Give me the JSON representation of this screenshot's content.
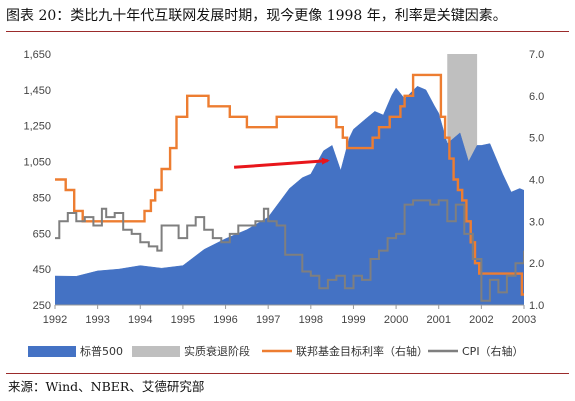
{
  "header": {
    "title": "图表 20：类比九十年代互联网发展时期，现今更像 1998 年，利率是关键因素。"
  },
  "footer": {
    "source": "来源：Wind、NBER、艾德研究部"
  },
  "colors": {
    "spx": "#4472c4",
    "recession": "#bfbfbf",
    "fed": "#ed7d31",
    "cpi": "#7f7f7f",
    "arrow": "#e8161b",
    "frame": "#9b2b2b"
  },
  "chart_data": {
    "type": "area",
    "xlim": [
      1992,
      2003
    ],
    "x_ticks": [
      "1992",
      "1993",
      "1994",
      "1995",
      "1996",
      "1997",
      "1998",
      "1999",
      "2000",
      "2001",
      "2002",
      "2003"
    ],
    "ylim_left": [
      250,
      1650
    ],
    "y_ticks_left": [
      "250",
      "450",
      "650",
      "850",
      "1,050",
      "1,250",
      "1,450",
      "1,650"
    ],
    "ylim_right": [
      1.0,
      7.0
    ],
    "y_ticks_right": [
      "1.0",
      "2.0",
      "3.0",
      "4.0",
      "5.0",
      "6.0",
      "7.0"
    ],
    "legend_position": "bottom",
    "recession": {
      "label": "实质衰退阶段",
      "start": 2001.2,
      "end": 2001.9
    },
    "annotation": {
      "type": "arrow",
      "x_start": 1996.2,
      "y_start": 1018,
      "x_end": 1998.4,
      "y_end": 1055
    },
    "series": [
      {
        "name": "标普500",
        "kind": "area",
        "axis": "left",
        "x": [
          1992,
          1992.5,
          1993,
          1993.5,
          1994,
          1994.5,
          1995,
          1995.5,
          1996,
          1996.5,
          1997,
          1997.5,
          1997.8,
          1998,
          1998.3,
          1998.5,
          1998.7,
          1998.9,
          1999,
          1999.3,
          1999.5,
          1999.7,
          1999.9,
          2000,
          2000.2,
          2000.5,
          2000.7,
          2000.9,
          2001,
          2001.2,
          2001.5,
          2001.7,
          2001.9,
          2002,
          2002.2,
          2002.5,
          2002.7,
          2002.9,
          2003
        ],
        "y": [
          412,
          410,
          440,
          450,
          470,
          455,
          470,
          560,
          620,
          670,
          740,
          900,
          960,
          980,
          1110,
          1140,
          1000,
          1180,
          1230,
          1290,
          1330,
          1310,
          1420,
          1460,
          1400,
          1470,
          1450,
          1360,
          1320,
          1150,
          1210,
          1050,
          1140,
          1140,
          1150,
          980,
          880,
          900,
          890
        ]
      },
      {
        "name": "联邦基金目标利率（右轴）",
        "kind": "step",
        "axis": "right",
        "x": [
          1992,
          1992.25,
          1992.45,
          1992.65,
          1993,
          1993.6,
          1994.1,
          1994.25,
          1994.35,
          1994.5,
          1994.6,
          1994.7,
          1994.85,
          1995.1,
          1995.5,
          1995.6,
          1996.1,
          1996.5,
          1997.2,
          1998.2,
          1998.6,
          1998.75,
          1998.85,
          1999.45,
          1999.6,
          1999.85,
          2000.1,
          2000.2,
          2000.4,
          2001.0,
          2001.05,
          2001.15,
          2001.25,
          2001.35,
          2001.45,
          2001.55,
          2001.65,
          2001.75,
          2001.85,
          2001.95,
          2002.85,
          2002.95,
          2003
        ],
        "y": [
          4.0,
          3.75,
          3.25,
          3.0,
          3.0,
          3.0,
          3.25,
          3.5,
          3.75,
          4.25,
          4.25,
          4.75,
          5.5,
          6.0,
          6.0,
          5.75,
          5.5,
          5.25,
          5.5,
          5.5,
          5.25,
          5.0,
          4.75,
          5.0,
          5.25,
          5.5,
          5.75,
          6.0,
          6.5,
          6.5,
          5.5,
          5.0,
          4.5,
          4.0,
          3.75,
          3.5,
          3.0,
          2.5,
          2.0,
          1.75,
          1.75,
          1.25,
          1.25
        ]
      },
      {
        "name": "CPI（右轴）",
        "kind": "step",
        "axis": "right",
        "x": [
          1992,
          1992.1,
          1992.3,
          1992.5,
          1992.7,
          1992.9,
          1993.1,
          1993.2,
          1993.4,
          1993.6,
          1993.8,
          1994,
          1994.2,
          1994.4,
          1994.5,
          1994.7,
          1994.9,
          1995.1,
          1995.3,
          1995.5,
          1995.7,
          1995.9,
          1996.1,
          1996.3,
          1996.5,
          1996.7,
          1996.9,
          1997,
          1997.2,
          1997.4,
          1997.6,
          1997.8,
          1998,
          1998.2,
          1998.4,
          1998.6,
          1998.8,
          1999,
          1999.2,
          1999.4,
          1999.6,
          1999.8,
          2000,
          2000.2,
          2000.4,
          2000.6,
          2000.8,
          2001,
          2001.2,
          2001.4,
          2001.6,
          2001.8,
          2002,
          2002.2,
          2002.4,
          2002.6,
          2002.8,
          2003
        ],
        "y": [
          2.6,
          3.0,
          3.2,
          3.0,
          3.1,
          2.9,
          3.3,
          3.1,
          3.2,
          2.8,
          2.7,
          2.5,
          2.4,
          2.3,
          2.9,
          2.9,
          2.6,
          2.9,
          3.1,
          2.8,
          2.6,
          2.5,
          2.7,
          2.9,
          2.9,
          3.0,
          3.3,
          3.0,
          2.9,
          2.2,
          2.2,
          1.8,
          1.7,
          1.4,
          1.6,
          1.7,
          1.4,
          1.7,
          1.6,
          2.1,
          2.3,
          2.6,
          2.7,
          3.4,
          3.5,
          3.5,
          3.4,
          3.5,
          3.0,
          3.4,
          2.7,
          2.1,
          1.1,
          1.6,
          1.3,
          1.7,
          2.0,
          2.3
        ]
      }
    ]
  }
}
